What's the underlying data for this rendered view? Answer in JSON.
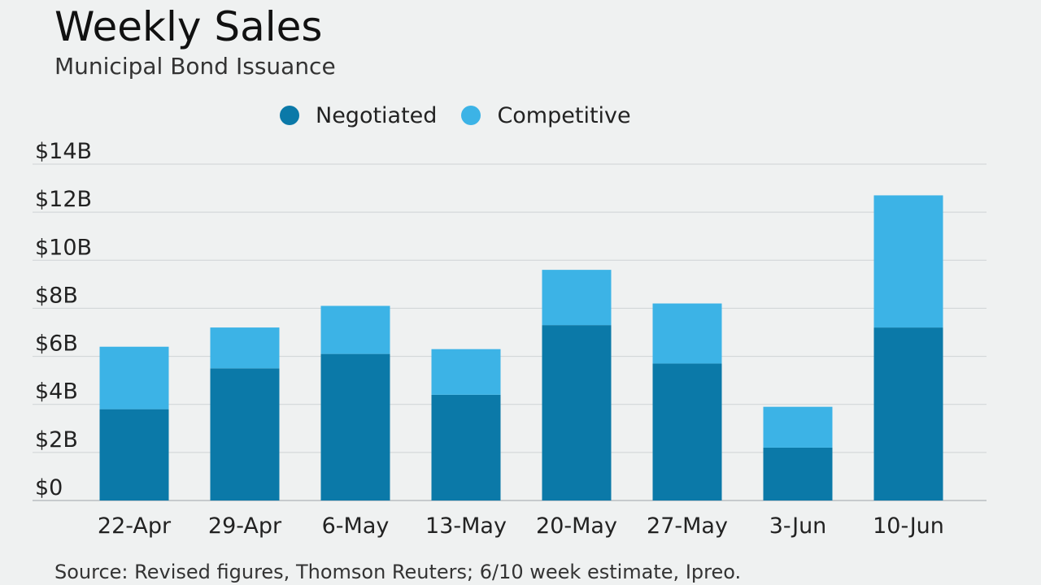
{
  "chart_data": {
    "type": "bar",
    "stacked": true,
    "title": "Weekly Sales",
    "subtitle": "Municipal Bond Issuance",
    "categories": [
      "22-Apr",
      "29-Apr",
      "6-May",
      "13-May",
      "20-May",
      "27-May",
      "3-Jun",
      "10-Jun"
    ],
    "series": [
      {
        "name": "Negotiated",
        "color": "#0b79a8",
        "values": [
          3.8,
          5.5,
          6.1,
          4.4,
          7.3,
          5.7,
          2.2,
          7.2
        ]
      },
      {
        "name": "Competitive",
        "color": "#3cb3e6",
        "values": [
          2.6,
          1.7,
          2.0,
          1.9,
          2.3,
          2.5,
          1.7,
          5.5
        ]
      }
    ],
    "ylim": [
      0,
      14
    ],
    "yticks": [
      0,
      2,
      4,
      6,
      8,
      10,
      12,
      14
    ],
    "ytick_labels": [
      "$0",
      "$2B",
      "$4B",
      "$6B",
      "$8B",
      "$10B",
      "$12B",
      "$14B"
    ],
    "xlabel": "",
    "ylabel": "",
    "grid": true,
    "legend_position": "top-center",
    "source": "Source: Revised figures, Thomson Reuters; 6/10 week estimate, Ipreo."
  }
}
